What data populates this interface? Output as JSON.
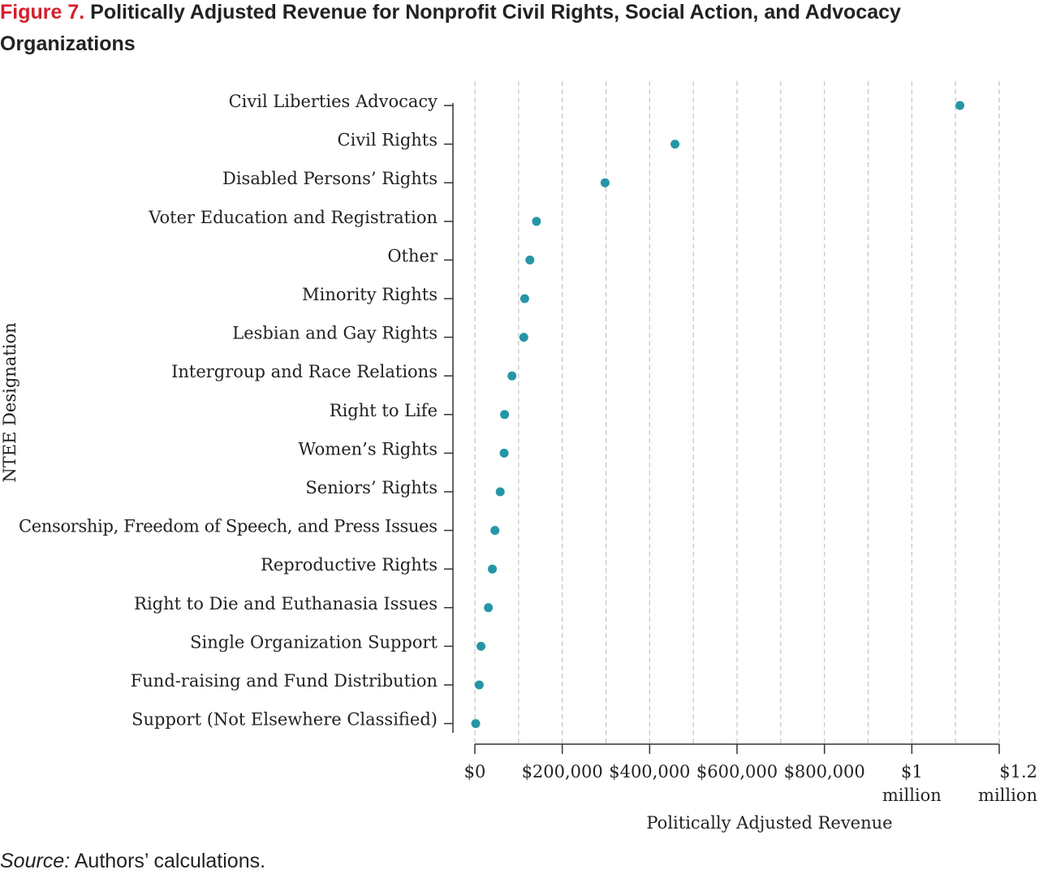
{
  "figure": {
    "label": "Figure 7.",
    "title": "Politically Adjusted Revenue for Nonprofit Civil Rights, Social Action, and Advocacy Organizations"
  },
  "source": {
    "label": "Source:",
    "text": "Authors’ calculations."
  },
  "chart_data": {
    "type": "scatter",
    "title": "Politically Adjusted Revenue for Nonprofit Civil Rights, Social Action, and Advocacy Organizations",
    "xlabel": "Politically Adjusted Revenue",
    "ylabel": "NTEE Designation",
    "xlim": [
      0,
      1200000
    ],
    "grid": true,
    "marker_color": "#2596a6",
    "x_ticks": [
      {
        "value": 0,
        "lines": [
          "$0"
        ]
      },
      {
        "value": 200000,
        "lines": [
          "$200,000"
        ]
      },
      {
        "value": 400000,
        "lines": [
          "$400,000"
        ]
      },
      {
        "value": 600000,
        "lines": [
          "$600,000"
        ]
      },
      {
        "value": 800000,
        "lines": [
          "$800,000"
        ]
      },
      {
        "value": 1000000,
        "lines": [
          "$1",
          "million"
        ]
      },
      {
        "value": 1200000,
        "lines": [
          "$1.2",
          "million"
        ]
      }
    ],
    "categories": [
      "Civil Liberties Advocacy",
      "Civil Rights",
      "Disabled Persons’ Rights",
      "Voter Education and  Registration",
      "Other",
      "Minority Rights",
      "Lesbian and Gay Rights",
      "Intergroup and Race Relations",
      "Right to Life",
      "Women’s Rights",
      "Seniors’ Rights",
      "Censorship, Freedom of Speech, and Press Issues",
      "Reproductive Rights",
      "Right to Die and Euthanasia Issues",
      "Single Organization Support",
      "Fund-raising and Fund Distribution",
      "Support (Not Elsewhere Classified)"
    ],
    "values": [
      1110000,
      458000,
      298000,
      141000,
      126000,
      114000,
      112000,
      85000,
      68000,
      67000,
      58000,
      46000,
      40000,
      31000,
      14000,
      10000,
      2000
    ]
  }
}
